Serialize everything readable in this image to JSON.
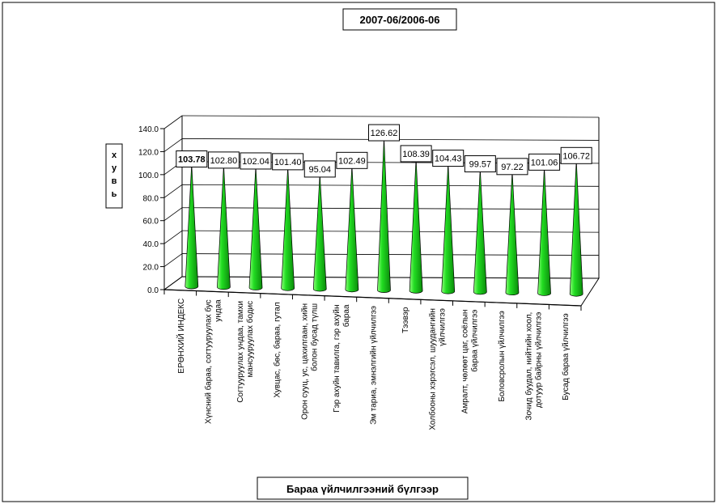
{
  "chart_data": {
    "type": "cone-column-3d",
    "title": "2007-06/2006-06",
    "xlabel": "Бараа үйлчилгээний бүлгээр",
    "ylabel": "хувь",
    "ylim": [
      0,
      140
    ],
    "yticks": [
      "0.0",
      "20.0",
      "40.0",
      "60.0",
      "80.0",
      "100.0",
      "120.0",
      "140.0"
    ],
    "grid": true,
    "legend": "none",
    "categories": [
      [
        "ЕРӨНХИЙ ИНДЕКС"
      ],
      [
        "Хүнсний бараа, согтууруулах бус",
        "ундаа"
      ],
      [
        "Согтууруулах ундаа, тамхи",
        "мансууруулах бодис"
      ],
      [
        "Хувцас, бөс, бараа, гутал"
      ],
      [
        "Орон сууц, ус, цахилгаан, хийн",
        "болон бусад түлш"
      ],
      [
        "Гэр ахуйн тавилга, гэр ахуйн",
        "бараа"
      ],
      [
        "Эм тариа, эмнэлгийн үйлчилгээ"
      ],
      [
        "Тээвэр"
      ],
      [
        "Холбооны хэрэгсэл, шуудангийн",
        "үйлчилгээ"
      ],
      [
        "Амралт, чөлөөт цаг, соёлын",
        "бараа үйлчилгээ"
      ],
      [
        "Боловсролын үйлчилгээ"
      ],
      [
        "Зочид буудал, нийтийн хоол,",
        "дотуур байрны үйлчилгээ"
      ],
      [
        "Бусад бараа үйлчилгээ"
      ]
    ],
    "values": [
      103.78,
      102.8,
      102.04,
      101.4,
      95.04,
      102.49,
      126.62,
      108.39,
      104.43,
      99.57,
      97.22,
      101.06,
      106.72
    ],
    "data_labels": [
      "103.78",
      "102.80",
      "102.04",
      "101.40",
      "95.04",
      "102.49",
      "126.62",
      "108.39",
      "104.43",
      "99.57",
      "97.22",
      "101.06",
      "106.72"
    ],
    "colors": {
      "cone_light": "#8dff7a",
      "cone": "#22dd22",
      "cone_dark": "#0a8a0a",
      "axis": "#000000"
    }
  }
}
